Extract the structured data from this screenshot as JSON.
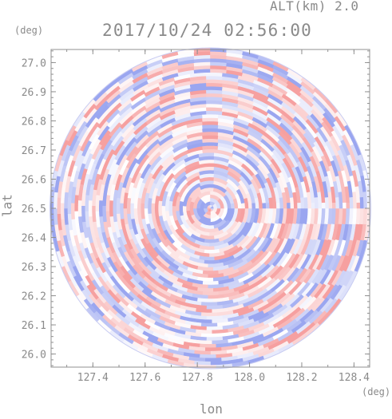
{
  "header": {
    "altitude_label": "ALT(km) 2.0",
    "timestamp": "2017/10/24 02:56:00"
  },
  "chart_data": {
    "type": "heatmap",
    "xlabel": "lon",
    "ylabel": "lat",
    "x_unit": "(deg)",
    "y_unit": "(deg)",
    "xlim": [
      127.24,
      128.46
    ],
    "ylim": [
      25.955,
      27.045
    ],
    "x_ticks": [
      127.4,
      127.6,
      127.8,
      128.0,
      128.2,
      128.4
    ],
    "x_tick_labels": [
      "127.4",
      "127.6",
      "127.8",
      "128.0",
      "128.2",
      "128.4"
    ],
    "y_ticks": [
      26.0,
      26.1,
      26.2,
      26.3,
      26.4,
      26.5,
      26.6,
      26.7,
      26.8,
      26.9,
      27.0
    ],
    "y_tick_labels": [
      "26.0",
      "26.1",
      "26.2",
      "26.3",
      "26.4",
      "26.5",
      "26.6",
      "26.7",
      "26.8",
      "26.9",
      "27.0"
    ],
    "center": [
      127.85,
      26.5
    ],
    "coverage": "circular radar scan, radius ≈ 0.54 deg",
    "colormap": {
      "negative": "#9aa6f0",
      "zero": "#ffffff",
      "positive": "#f6a0a0"
    },
    "grid": false
  }
}
